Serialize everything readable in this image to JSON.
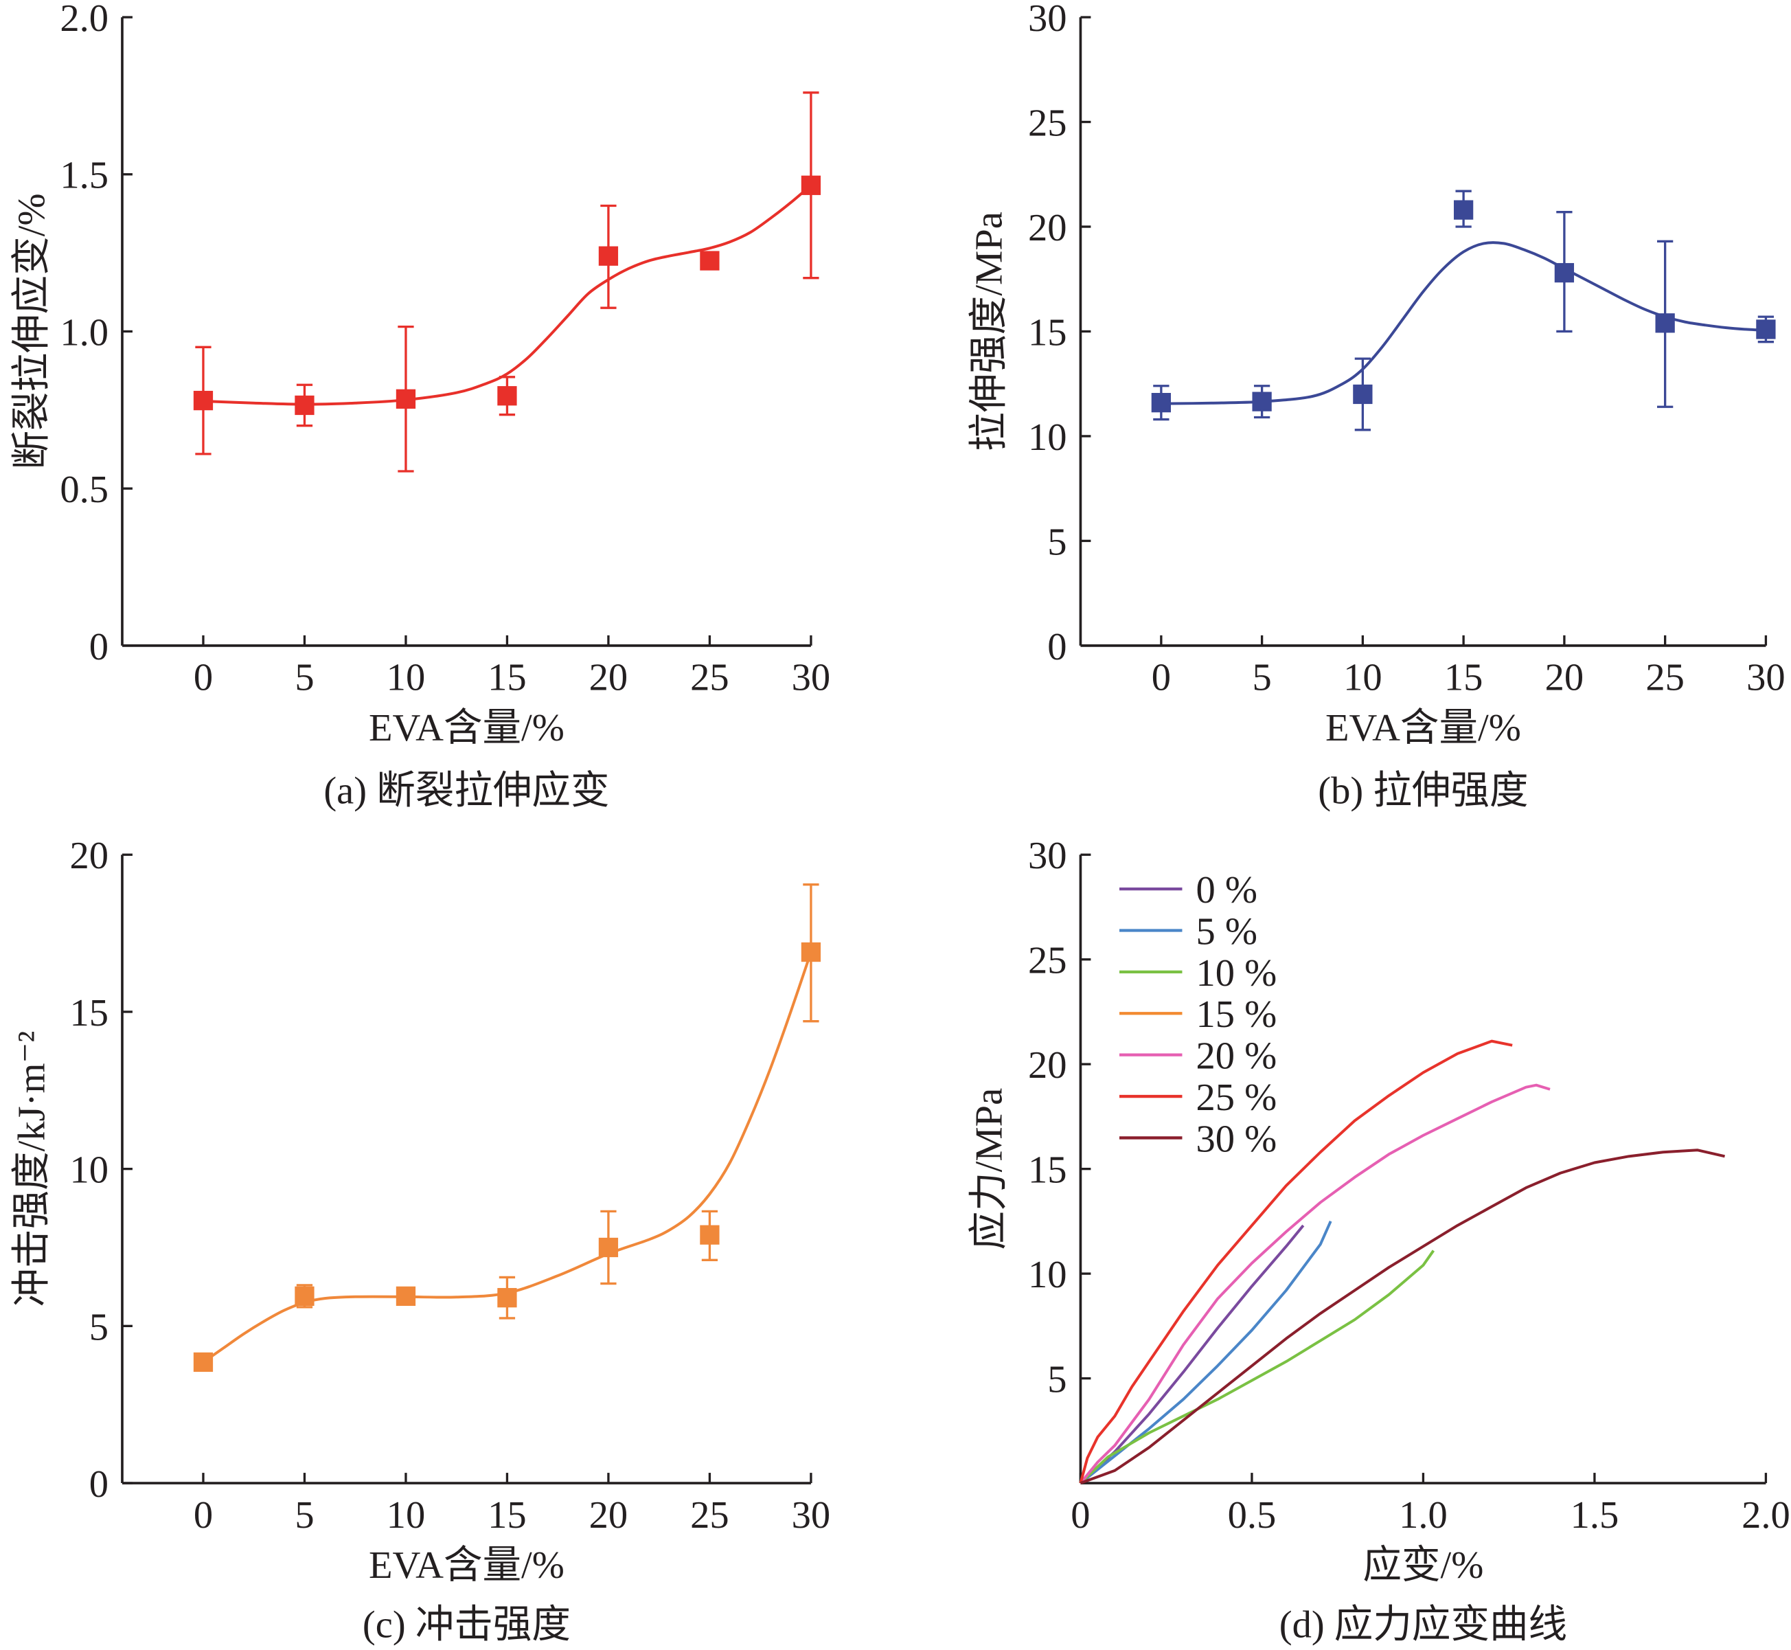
{
  "chart_data": [
    {
      "id": "a",
      "type": "scatter",
      "caption": "(a) 断裂拉伸应变",
      "xlabel": "EVA含量/%",
      "ylabel": "断裂拉伸应变/%",
      "xlim": [
        -4,
        30
      ],
      "ylim": [
        0,
        2.0
      ],
      "xticks": [
        0,
        5,
        10,
        15,
        20,
        25,
        30
      ],
      "xtick_labels": [
        "0",
        "5",
        "10",
        "15",
        "20",
        "25",
        "30"
      ],
      "yticks": [
        0,
        0.5,
        1.0,
        1.5,
        2.0
      ],
      "ytick_labels": [
        "0",
        "0.5",
        "1.0",
        "1.5",
        "2.0"
      ],
      "grid": false,
      "color": "#e8302a",
      "points": [
        {
          "x": 0,
          "y": 0.78,
          "err_low": 0.61,
          "err_high": 0.95
        },
        {
          "x": 5,
          "y": 0.765,
          "err_low": 0.7,
          "err_high": 0.83
        },
        {
          "x": 10,
          "y": 0.785,
          "err_low": 0.555,
          "err_high": 1.015
        },
        {
          "x": 15,
          "y": 0.795,
          "err_low": 0.735,
          "err_high": 0.855
        },
        {
          "x": 20,
          "y": 1.24,
          "err_low": 1.075,
          "err_high": 1.4
        },
        {
          "x": 25,
          "y": 1.225,
          "err_low": 1.21,
          "err_high": 1.24
        },
        {
          "x": 30,
          "y": 1.465,
          "err_low": 1.17,
          "err_high": 1.76
        }
      ],
      "fit": {
        "x": [
          0,
          2.5,
          5,
          7.5,
          10,
          12.5,
          14,
          15,
          16,
          17,
          18,
          19,
          20,
          21,
          22,
          23,
          24,
          25,
          26,
          27,
          28,
          29,
          30
        ],
        "y": [
          0.778,
          0.772,
          0.768,
          0.772,
          0.782,
          0.805,
          0.835,
          0.865,
          0.915,
          0.98,
          1.05,
          1.12,
          1.165,
          1.2,
          1.225,
          1.24,
          1.252,
          1.265,
          1.285,
          1.315,
          1.36,
          1.41,
          1.465
        ]
      }
    },
    {
      "id": "b",
      "type": "scatter",
      "caption": "(b) 拉伸强度",
      "xlabel": "EVA含量/%",
      "ylabel": "拉伸强度/MPa",
      "xlim": [
        -4,
        30
      ],
      "ylim": [
        0,
        30
      ],
      "xticks": [
        0,
        5,
        10,
        15,
        20,
        25,
        30
      ],
      "xtick_labels": [
        "0",
        "5",
        "10",
        "15",
        "20",
        "25",
        "30"
      ],
      "yticks": [
        0,
        5,
        10,
        15,
        20,
        25,
        30
      ],
      "ytick_labels": [
        "0",
        "5",
        "10",
        "15",
        "20",
        "25",
        "30"
      ],
      "grid": false,
      "color": "#3b4896",
      "points": [
        {
          "x": 0,
          "y": 11.6,
          "err_low": 10.8,
          "err_high": 12.4
        },
        {
          "x": 5,
          "y": 11.65,
          "err_low": 10.9,
          "err_high": 12.4
        },
        {
          "x": 10,
          "y": 12.0,
          "err_low": 10.3,
          "err_high": 13.7
        },
        {
          "x": 15,
          "y": 20.8,
          "err_low": 20.0,
          "err_high": 21.7
        },
        {
          "x": 20,
          "y": 17.8,
          "err_low": 15.0,
          "err_high": 20.7
        },
        {
          "x": 25,
          "y": 15.4,
          "err_low": 11.4,
          "err_high": 19.3
        },
        {
          "x": 30,
          "y": 15.1,
          "err_low": 14.5,
          "err_high": 15.7
        }
      ],
      "fit": {
        "x": [
          0,
          2.5,
          5,
          7.5,
          9,
          10,
          11,
          12,
          13,
          14,
          15,
          16,
          17,
          18,
          19,
          20,
          21,
          22,
          23,
          24,
          25,
          26,
          27,
          28,
          29,
          30
        ],
        "y": [
          11.55,
          11.58,
          11.65,
          11.9,
          12.5,
          13.2,
          14.3,
          15.6,
          16.9,
          18.0,
          18.8,
          19.2,
          19.2,
          18.9,
          18.5,
          18.0,
          17.5,
          17.0,
          16.5,
          16.05,
          15.7,
          15.45,
          15.3,
          15.18,
          15.1,
          15.05
        ]
      }
    },
    {
      "id": "c",
      "type": "scatter",
      "caption": "(c) 冲击强度",
      "xlabel": "EVA含量/%",
      "ylabel": "冲击强度/kJ·m⁻²",
      "xlim": [
        -4,
        30
      ],
      "ylim": [
        0,
        20
      ],
      "xticks": [
        0,
        5,
        10,
        15,
        20,
        25,
        30
      ],
      "xtick_labels": [
        "0",
        "5",
        "10",
        "15",
        "20",
        "25",
        "30"
      ],
      "yticks": [
        0,
        5,
        10,
        15,
        20
      ],
      "ytick_labels": [
        "0",
        "5",
        "10",
        "15",
        "20"
      ],
      "grid": false,
      "color": "#f0883a",
      "points": [
        {
          "x": 0,
          "y": 3.85,
          "err_low": 3.7,
          "err_high": 4.0
        },
        {
          "x": 5,
          "y": 5.95,
          "err_low": 5.6,
          "err_high": 6.3
        },
        {
          "x": 10,
          "y": 5.95,
          "err_low": 5.8,
          "err_high": 6.1
        },
        {
          "x": 15,
          "y": 5.9,
          "err_low": 5.25,
          "err_high": 6.55
        },
        {
          "x": 20,
          "y": 7.5,
          "err_low": 6.35,
          "err_high": 8.65
        },
        {
          "x": 25,
          "y": 7.9,
          "err_low": 7.1,
          "err_high": 8.65
        },
        {
          "x": 30,
          "y": 16.9,
          "err_low": 14.7,
          "err_high": 19.05
        }
      ],
      "fit": {
        "x": [
          0,
          1,
          2,
          3,
          4,
          5,
          6,
          7.5,
          10,
          12.5,
          15,
          17.5,
          20,
          22,
          23,
          24,
          25,
          26,
          27,
          28,
          29,
          30
        ],
        "y": [
          3.85,
          4.3,
          4.75,
          5.15,
          5.5,
          5.75,
          5.88,
          5.93,
          5.93,
          5.92,
          6.05,
          6.6,
          7.3,
          7.75,
          8.05,
          8.5,
          9.2,
          10.2,
          11.6,
          13.2,
          15.0,
          16.9
        ]
      }
    },
    {
      "id": "d",
      "type": "line",
      "caption": "(d) 应力应变曲线",
      "xlabel": "应变/%",
      "ylabel": "应力/MPa",
      "xlim": [
        0,
        2.0
      ],
      "ylim": [
        0,
        30
      ],
      "xticks": [
        0,
        0.5,
        1.0,
        1.5,
        2.0
      ],
      "xtick_labels": [
        "0",
        "0.5",
        "1.0",
        "1.5",
        "2.0"
      ],
      "yticks": [
        5,
        10,
        15,
        20,
        25,
        30
      ],
      "ytick_labels": [
        "5",
        "10",
        "15",
        "20",
        "25",
        "30"
      ],
      "grid": false,
      "legend_position": "top-left",
      "series": [
        {
          "name": "0 %",
          "color": "#7a4a9e",
          "points": [
            [
              0,
              0
            ],
            [
              0.1,
              1.5
            ],
            [
              0.2,
              3.3
            ],
            [
              0.3,
              5.3
            ],
            [
              0.4,
              7.4
            ],
            [
              0.5,
              9.4
            ],
            [
              0.6,
              11.3
            ],
            [
              0.65,
              12.3
            ]
          ]
        },
        {
          "name": "5 %",
          "color": "#4a86c8",
          "points": [
            [
              0,
              0
            ],
            [
              0.1,
              1.3
            ],
            [
              0.2,
              2.6
            ],
            [
              0.3,
              4.0
            ],
            [
              0.4,
              5.6
            ],
            [
              0.5,
              7.3
            ],
            [
              0.6,
              9.2
            ],
            [
              0.7,
              11.4
            ],
            [
              0.73,
              12.5
            ]
          ]
        },
        {
          "name": "10 %",
          "color": "#7ac143",
          "points": [
            [
              0,
              0
            ],
            [
              0.08,
              1.25
            ],
            [
              0.2,
              2.4
            ],
            [
              0.3,
              3.2
            ],
            [
              0.4,
              4.0
            ],
            [
              0.5,
              4.9
            ],
            [
              0.6,
              5.8
            ],
            [
              0.7,
              6.8
            ],
            [
              0.8,
              7.8
            ],
            [
              0.9,
              9.0
            ],
            [
              1.0,
              10.4
            ],
            [
              1.03,
              11.1
            ]
          ]
        },
        {
          "name": "15 %",
          "color": "#f28a30",
          "points": []
        },
        {
          "name": "20 %",
          "color": "#e65fb2",
          "points": [
            [
              0,
              0
            ],
            [
              0.05,
              1.0
            ],
            [
              0.1,
              1.8
            ],
            [
              0.2,
              4.0
            ],
            [
              0.3,
              6.6
            ],
            [
              0.4,
              8.8
            ],
            [
              0.5,
              10.5
            ],
            [
              0.6,
              12.0
            ],
            [
              0.7,
              13.4
            ],
            [
              0.8,
              14.6
            ],
            [
              0.9,
              15.7
            ],
            [
              1.0,
              16.6
            ],
            [
              1.1,
              17.4
            ],
            [
              1.2,
              18.2
            ],
            [
              1.3,
              18.9
            ],
            [
              1.33,
              19.0
            ],
            [
              1.37,
              18.8
            ]
          ]
        },
        {
          "name": "25 %",
          "color": "#e8332b",
          "points": [
            [
              0,
              0
            ],
            [
              0.02,
              1.2
            ],
            [
              0.05,
              2.2
            ],
            [
              0.1,
              3.2
            ],
            [
              0.15,
              4.6
            ],
            [
              0.2,
              5.8
            ],
            [
              0.25,
              7.0
            ],
            [
              0.3,
              8.2
            ],
            [
              0.35,
              9.3
            ],
            [
              0.4,
              10.4
            ],
            [
              0.5,
              12.3
            ],
            [
              0.6,
              14.2
            ],
            [
              0.7,
              15.8
            ],
            [
              0.8,
              17.3
            ],
            [
              0.9,
              18.5
            ],
            [
              1.0,
              19.6
            ],
            [
              1.1,
              20.5
            ],
            [
              1.2,
              21.1
            ],
            [
              1.26,
              20.9
            ]
          ]
        },
        {
          "name": "30 %",
          "color": "#8a1f2c",
          "points": [
            [
              0,
              0
            ],
            [
              0.1,
              0.6
            ],
            [
              0.2,
              1.7
            ],
            [
              0.3,
              3.0
            ],
            [
              0.4,
              4.3
            ],
            [
              0.5,
              5.6
            ],
            [
              0.6,
              6.9
            ],
            [
              0.7,
              8.1
            ],
            [
              0.8,
              9.2
            ],
            [
              0.9,
              10.3
            ],
            [
              1.0,
              11.3
            ],
            [
              1.1,
              12.3
            ],
            [
              1.2,
              13.2
            ],
            [
              1.3,
              14.1
            ],
            [
              1.4,
              14.8
            ],
            [
              1.5,
              15.3
            ],
            [
              1.6,
              15.6
            ],
            [
              1.7,
              15.8
            ],
            [
              1.8,
              15.9
            ],
            [
              1.88,
              15.6
            ]
          ]
        }
      ]
    }
  ]
}
